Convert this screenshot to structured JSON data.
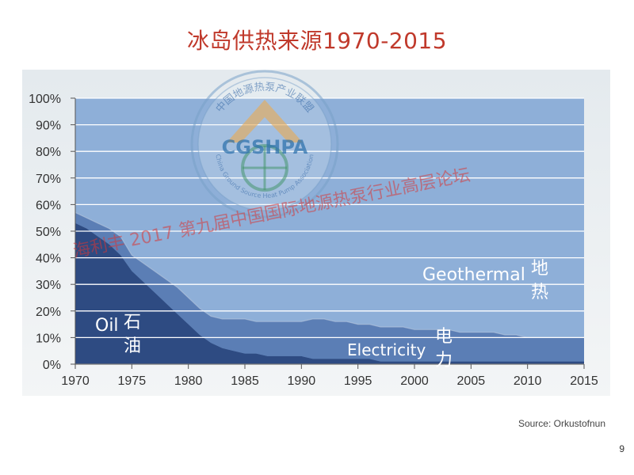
{
  "title": "冰岛供热来源1970-2015",
  "source": "Source: Orkustofnun",
  "page_number": "9",
  "watermark": {
    "text": "海利丰 2017 第九届中国国际地源热泵行业高层论坛",
    "seal_name": "CGSHPA",
    "seal_upper": "中国地源热泵产业联盟",
    "seal_lower": "China Ground Source Heat Pump Association"
  },
  "colors": {
    "geothermal": "#8eafd8",
    "electricity": "#5b7eb5",
    "oil": "#2e4b82",
    "oil_edge": "#b9c8de",
    "axis_text": "#333333",
    "grid": "#ffffff"
  },
  "chart_data": {
    "type": "area",
    "stacked": true,
    "title": "冰岛供热来源1970-2015",
    "xlabel": "",
    "ylabel": "",
    "xlim": [
      1970,
      2015
    ],
    "ylim": [
      0,
      100
    ],
    "x_ticks": [
      "1970",
      "1975",
      "1980",
      "1985",
      "1990",
      "1995",
      "2000",
      "2005",
      "2010",
      "2015"
    ],
    "y_ticks": [
      "0%",
      "10%",
      "20%",
      "30%",
      "40%",
      "50%",
      "60%",
      "70%",
      "80%",
      "90%",
      "100%"
    ],
    "grid": true,
    "x": [
      1970,
      1971,
      1972,
      1973,
      1974,
      1975,
      1976,
      1977,
      1978,
      1979,
      1980,
      1981,
      1982,
      1983,
      1984,
      1985,
      1986,
      1987,
      1988,
      1989,
      1990,
      1991,
      1992,
      1993,
      1994,
      1995,
      1996,
      1997,
      1998,
      1999,
      2000,
      2001,
      2002,
      2003,
      2004,
      2005,
      2006,
      2007,
      2008,
      2009,
      2010,
      2011,
      2012,
      2013,
      2014,
      2015
    ],
    "series": [
      {
        "label": "Oil石油",
        "values": [
          53,
          51,
          48,
          45,
          41,
          35,
          31,
          27,
          23,
          19,
          15,
          11,
          8,
          6,
          5,
          4,
          4,
          3,
          3,
          3,
          3,
          2,
          2,
          2,
          2,
          2,
          2,
          1,
          1,
          1,
          1,
          1,
          1,
          1,
          1,
          1,
          1,
          1,
          1,
          1,
          1,
          1,
          1,
          1,
          1,
          1
        ]
      },
      {
        "label": "Electricity电力",
        "values": [
          4,
          4,
          5,
          6,
          7,
          6,
          7,
          8,
          9,
          10,
          10,
          10,
          10,
          11,
          12,
          13,
          12,
          13,
          13,
          13,
          13,
          15,
          15,
          14,
          14,
          13,
          13,
          13,
          13,
          13,
          12,
          12,
          12,
          12,
          11,
          11,
          11,
          11,
          10,
          10,
          9,
          9,
          9,
          9,
          9,
          9
        ]
      },
      {
        "label": "Geothermal地热",
        "values": [
          43,
          45,
          47,
          49,
          52,
          59,
          62,
          65,
          68,
          71,
          75,
          79,
          82,
          83,
          83,
          83,
          84,
          84,
          84,
          84,
          84,
          83,
          83,
          84,
          84,
          85,
          85,
          86,
          86,
          86,
          87,
          87,
          87,
          87,
          88,
          88,
          88,
          88,
          89,
          89,
          90,
          90,
          90,
          90,
          90,
          90
        ]
      }
    ],
    "labels": {
      "oil": [
        "Oil",
        "石",
        "油"
      ],
      "electricity": [
        "Electricity",
        "电",
        "力"
      ],
      "geothermal": [
        "Geothermal",
        "地",
        "热"
      ]
    }
  }
}
